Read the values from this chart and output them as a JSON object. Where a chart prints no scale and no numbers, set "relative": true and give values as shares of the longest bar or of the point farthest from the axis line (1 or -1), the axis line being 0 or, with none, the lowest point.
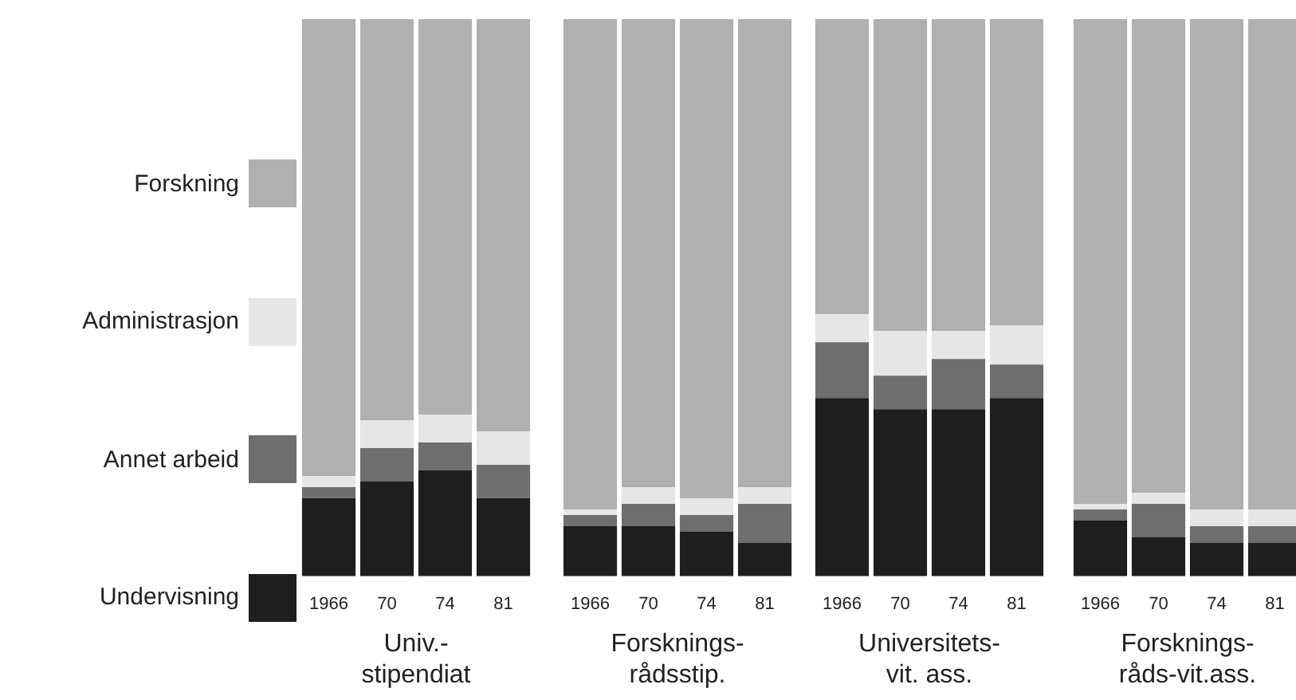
{
  "chart_data": [
    {
      "type": "bar",
      "stacked": true,
      "relative": true,
      "legend": "left",
      "xlabel": "Univ.-\nstipendiat",
      "categories": [
        "1966",
        "70",
        "74",
        "81"
      ],
      "series": [
        {
          "name": "Undervisning",
          "color": "#1e1e1e",
          "values": [
            0.14,
            0.17,
            0.19,
            0.14
          ]
        },
        {
          "name": "Annet arbeid",
          "color": "#6e6e6e",
          "values": [
            0.02,
            0.06,
            0.05,
            0.06
          ]
        },
        {
          "name": "Administrasjon",
          "color": "#e6e6e6",
          "values": [
            0.02,
            0.05,
            0.05,
            0.06
          ]
        },
        {
          "name": "Forskning",
          "color": "#b0b0b0",
          "values": [
            0.82,
            0.72,
            0.71,
            0.74
          ]
        }
      ]
    },
    {
      "type": "bar",
      "stacked": true,
      "relative": true,
      "xlabel": "Forsknings-\nrådsstip.",
      "categories": [
        "1966",
        "70",
        "74",
        "81"
      ],
      "series": [
        {
          "color": "#1e1e1e",
          "values": [
            0.09,
            0.09,
            0.08,
            0.06
          ]
        },
        {
          "color": "#6e6e6e",
          "values": [
            0.02,
            0.04,
            0.03,
            0.07
          ]
        },
        {
          "color": "#e6e6e6",
          "values": [
            0.01,
            0.03,
            0.03,
            0.03
          ]
        },
        {
          "color": "#b0b0b0",
          "values": [
            0.88,
            0.84,
            0.86,
            0.84
          ]
        }
      ]
    },
    {
      "type": "bar",
      "stacked": true,
      "relative": true,
      "xlabel": "Universitets-\nvit. ass.",
      "categories": [
        "1966",
        "70",
        "74",
        "81"
      ],
      "series": [
        {
          "color": "#1e1e1e",
          "values": [
            0.32,
            0.3,
            0.3,
            0.32
          ]
        },
        {
          "color": "#6e6e6e",
          "values": [
            0.1,
            0.06,
            0.09,
            0.06
          ]
        },
        {
          "color": "#e6e6e6",
          "values": [
            0.05,
            0.08,
            0.05,
            0.07
          ]
        },
        {
          "color": "#b0b0b0",
          "values": [
            0.53,
            0.56,
            0.56,
            0.55
          ]
        }
      ]
    },
    {
      "type": "bar",
      "stacked": true,
      "relative": true,
      "xlabel": "Forsknings-\nråds-vit.ass.",
      "categories": [
        "1966",
        "70",
        "74",
        "81"
      ],
      "series": [
        {
          "color": "#1e1e1e",
          "values": [
            0.1,
            0.07,
            0.06,
            0.06
          ]
        },
        {
          "color": "#6e6e6e",
          "values": [
            0.02,
            0.06,
            0.03,
            0.03
          ]
        },
        {
          "color": "#e6e6e6",
          "values": [
            0.01,
            0.02,
            0.03,
            0.03
          ]
        },
        {
          "color": "#b0b0b0",
          "values": [
            0.87,
            0.85,
            0.88,
            0.88
          ]
        }
      ]
    }
  ]
}
